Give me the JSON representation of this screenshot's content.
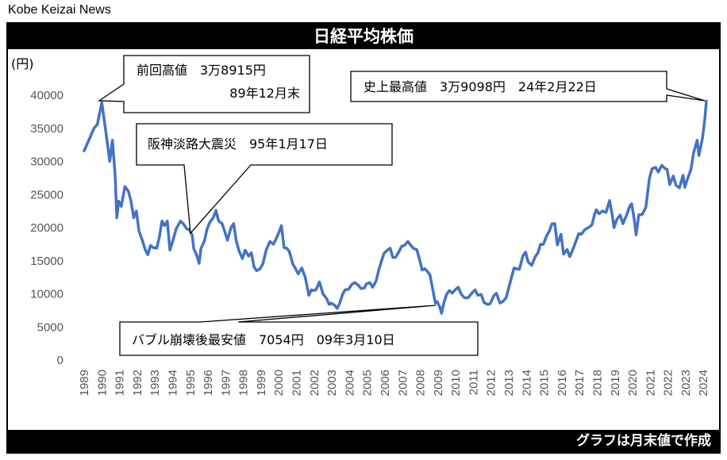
{
  "publisher": "Kobe Keizai News",
  "footer_note": "グラフは月末値で作成",
  "colors": {
    "line": "#4472C4",
    "bar": "#000000",
    "text": "#000000",
    "axis_text": "#555555"
  },
  "chart_data": {
    "type": "line",
    "title": "日経平均株価",
    "ylabel": "(円)",
    "ylim": [
      0,
      40000
    ],
    "yticks": [
      "40000",
      "35000",
      "30000",
      "25000",
      "20000",
      "15000",
      "10000",
      "5000",
      "0"
    ],
    "xlim": [
      1989.0,
      2024.17
    ],
    "xticks": [
      "1989",
      "1990",
      "1991",
      "1992",
      "1993",
      "1994",
      "1995",
      "1996",
      "1997",
      "1998",
      "1999",
      "2000",
      "2001",
      "2002",
      "2003",
      "2004",
      "2005",
      "2006",
      "2007",
      "2008",
      "2009",
      "2010",
      "2011",
      "2012",
      "2013",
      "2014",
      "2015",
      "2016",
      "2017",
      "2018",
      "2019",
      "2020",
      "2021",
      "2022",
      "2023",
      "2024"
    ],
    "series": [
      {
        "name": "日経平均株価 月末値",
        "points": [
          [
            1989.0,
            31600
          ],
          [
            1989.3,
            33400
          ],
          [
            1989.55,
            35000
          ],
          [
            1989.75,
            35600
          ],
          [
            1990.0,
            38915
          ],
          [
            1990.15,
            36000
          ],
          [
            1990.3,
            33000
          ],
          [
            1990.45,
            30000
          ],
          [
            1990.6,
            33200
          ],
          [
            1990.75,
            28000
          ],
          [
            1990.85,
            21500
          ],
          [
            1990.95,
            24000
          ],
          [
            1991.1,
            23200
          ],
          [
            1991.3,
            26200
          ],
          [
            1991.5,
            25500
          ],
          [
            1991.65,
            24000
          ],
          [
            1991.8,
            21500
          ],
          [
            1991.95,
            22500
          ],
          [
            1992.1,
            19500
          ],
          [
            1992.3,
            18000
          ],
          [
            1992.45,
            16700
          ],
          [
            1992.6,
            15900
          ],
          [
            1992.75,
            17300
          ],
          [
            1992.9,
            17000
          ],
          [
            1993.1,
            16900
          ],
          [
            1993.25,
            18500
          ],
          [
            1993.4,
            21000
          ],
          [
            1993.55,
            20300
          ],
          [
            1993.7,
            21000
          ],
          [
            1993.85,
            16600
          ],
          [
            1993.95,
            17400
          ],
          [
            1994.2,
            19800
          ],
          [
            1994.45,
            21000
          ],
          [
            1994.6,
            20600
          ],
          [
            1994.8,
            19800
          ],
          [
            1994.95,
            19700
          ],
          [
            1995.1,
            18900
          ],
          [
            1995.2,
            16800
          ],
          [
            1995.35,
            15900
          ],
          [
            1995.5,
            14600
          ],
          [
            1995.6,
            16800
          ],
          [
            1995.8,
            18000
          ],
          [
            1995.95,
            19800
          ],
          [
            1996.1,
            20800
          ],
          [
            1996.3,
            21500
          ],
          [
            1996.45,
            22600
          ],
          [
            1996.6,
            21000
          ],
          [
            1996.8,
            20600
          ],
          [
            1996.95,
            19400
          ],
          [
            1997.1,
            18100
          ],
          [
            1997.3,
            20000
          ],
          [
            1997.45,
            20600
          ],
          [
            1997.6,
            18000
          ],
          [
            1997.75,
            16500
          ],
          [
            1997.95,
            15300
          ],
          [
            1998.1,
            16600
          ],
          [
            1998.3,
            15700
          ],
          [
            1998.45,
            16200
          ],
          [
            1998.6,
            14100
          ],
          [
            1998.75,
            13500
          ],
          [
            1998.95,
            13800
          ],
          [
            1999.1,
            14500
          ],
          [
            1999.3,
            16700
          ],
          [
            1999.5,
            17900
          ],
          [
            1999.7,
            17500
          ],
          [
            1999.85,
            18300
          ],
          [
            1999.95,
            18900
          ],
          [
            2000.15,
            20300
          ],
          [
            2000.3,
            17000
          ],
          [
            2000.45,
            16900
          ],
          [
            2000.6,
            16400
          ],
          [
            2000.8,
            14500
          ],
          [
            2000.95,
            13800
          ],
          [
            2001.1,
            13000
          ],
          [
            2001.3,
            13900
          ],
          [
            2001.5,
            12500
          ],
          [
            2001.7,
            9800
          ],
          [
            2001.85,
            10600
          ],
          [
            2001.95,
            10500
          ],
          [
            2002.1,
            10600
          ],
          [
            2002.3,
            11800
          ],
          [
            2002.5,
            10000
          ],
          [
            2002.7,
            9300
          ],
          [
            2002.85,
            8400
          ],
          [
            2002.95,
            8600
          ],
          [
            2003.15,
            8300
          ],
          [
            2003.3,
            7800
          ],
          [
            2003.45,
            8600
          ],
          [
            2003.6,
            9900
          ],
          [
            2003.75,
            10600
          ],
          [
            2003.95,
            10700
          ],
          [
            2004.15,
            11500
          ],
          [
            2004.3,
            11700
          ],
          [
            2004.5,
            11300
          ],
          [
            2004.65,
            10800
          ],
          [
            2004.85,
            10900
          ],
          [
            2004.95,
            11500
          ],
          [
            2005.15,
            11700
          ],
          [
            2005.3,
            11000
          ],
          [
            2005.5,
            11900
          ],
          [
            2005.65,
            13600
          ],
          [
            2005.8,
            14900
          ],
          [
            2005.95,
            16100
          ],
          [
            2006.1,
            16500
          ],
          [
            2006.3,
            16900
          ],
          [
            2006.45,
            15500
          ],
          [
            2006.6,
            15500
          ],
          [
            2006.8,
            16400
          ],
          [
            2006.95,
            17200
          ],
          [
            2007.1,
            17300
          ],
          [
            2007.3,
            17900
          ],
          [
            2007.5,
            17200
          ],
          [
            2007.65,
            16800
          ],
          [
            2007.8,
            16700
          ],
          [
            2007.95,
            15300
          ],
          [
            2008.1,
            13600
          ],
          [
            2008.25,
            13800
          ],
          [
            2008.4,
            13400
          ],
          [
            2008.55,
            12800
          ],
          [
            2008.7,
            10800
          ],
          [
            2008.85,
            8600
          ],
          [
            2008.95,
            8850
          ],
          [
            2009.1,
            8000
          ],
          [
            2009.2,
            7054
          ],
          [
            2009.35,
            8800
          ],
          [
            2009.5,
            10000
          ],
          [
            2009.65,
            10500
          ],
          [
            2009.8,
            10100
          ],
          [
            2009.95,
            10550
          ],
          [
            2010.15,
            11000
          ],
          [
            2010.3,
            10000
          ],
          [
            2010.5,
            9400
          ],
          [
            2010.7,
            9400
          ],
          [
            2010.85,
            9900
          ],
          [
            2010.95,
            10200
          ],
          [
            2011.1,
            10600
          ],
          [
            2011.25,
            9800
          ],
          [
            2011.45,
            9900
          ],
          [
            2011.6,
            8700
          ],
          [
            2011.8,
            8400
          ],
          [
            2011.95,
            8500
          ],
          [
            2012.15,
            9700
          ],
          [
            2012.3,
            10100
          ],
          [
            2012.5,
            8600
          ],
          [
            2012.65,
            8800
          ],
          [
            2012.85,
            9400
          ],
          [
            2012.95,
            10400
          ],
          [
            2013.15,
            12400
          ],
          [
            2013.3,
            13900
          ],
          [
            2013.45,
            13800
          ],
          [
            2013.6,
            13700
          ],
          [
            2013.8,
            15700
          ],
          [
            2013.95,
            16300
          ],
          [
            2014.1,
            14800
          ],
          [
            2014.3,
            14300
          ],
          [
            2014.5,
            15600
          ],
          [
            2014.65,
            16200
          ],
          [
            2014.8,
            17500
          ],
          [
            2014.95,
            17450
          ],
          [
            2015.15,
            18800
          ],
          [
            2015.3,
            19500
          ],
          [
            2015.45,
            20600
          ],
          [
            2015.6,
            20600
          ],
          [
            2015.75,
            17400
          ],
          [
            2015.95,
            19000
          ],
          [
            2016.1,
            16000
          ],
          [
            2016.3,
            16700
          ],
          [
            2016.45,
            15600
          ],
          [
            2016.65,
            16900
          ],
          [
            2016.85,
            18300
          ],
          [
            2016.95,
            19100
          ],
          [
            2017.1,
            19000
          ],
          [
            2017.3,
            19700
          ],
          [
            2017.5,
            20000
          ],
          [
            2017.7,
            20400
          ],
          [
            2017.85,
            22000
          ],
          [
            2017.95,
            22700
          ],
          [
            2018.1,
            22100
          ],
          [
            2018.3,
            22500
          ],
          [
            2018.5,
            22300
          ],
          [
            2018.7,
            24100
          ],
          [
            2018.85,
            21900
          ],
          [
            2018.95,
            20000
          ],
          [
            2019.1,
            21200
          ],
          [
            2019.3,
            21900
          ],
          [
            2019.45,
            20600
          ],
          [
            2019.65,
            21800
          ],
          [
            2019.85,
            23300
          ],
          [
            2019.95,
            23600
          ],
          [
            2020.1,
            21100
          ],
          [
            2020.2,
            18900
          ],
          [
            2020.35,
            21900
          ],
          [
            2020.55,
            22000
          ],
          [
            2020.75,
            23100
          ],
          [
            2020.95,
            27400
          ],
          [
            2021.1,
            28900
          ],
          [
            2021.3,
            29100
          ],
          [
            2021.45,
            28400
          ],
          [
            2021.65,
            29400
          ],
          [
            2021.85,
            28900
          ],
          [
            2021.95,
            28800
          ],
          [
            2022.1,
            26500
          ],
          [
            2022.3,
            27800
          ],
          [
            2022.45,
            26400
          ],
          [
            2022.65,
            26000
          ],
          [
            2022.85,
            27900
          ],
          [
            2022.95,
            26100
          ],
          [
            2023.1,
            27300
          ],
          [
            2023.3,
            28800
          ],
          [
            2023.45,
            31300
          ],
          [
            2023.65,
            33200
          ],
          [
            2023.75,
            30900
          ],
          [
            2023.95,
            33500
          ],
          [
            2024.08,
            36300
          ],
          [
            2024.17,
            39098
          ]
        ]
      }
    ],
    "annotations": [
      {
        "name": "peak-1989",
        "line1": "前回高値　3万8915円",
        "line2": "89年12月末"
      },
      {
        "name": "hanshin-quake",
        "line1": "阪神淡路大震災　95年1月17日"
      },
      {
        "name": "post-bubble-low",
        "line1": "バブル崩壊後最安値　7054円　09年3月10日"
      },
      {
        "name": "record-high",
        "line1": "史上最高値　3万9098円　24年2月22日"
      }
    ]
  }
}
